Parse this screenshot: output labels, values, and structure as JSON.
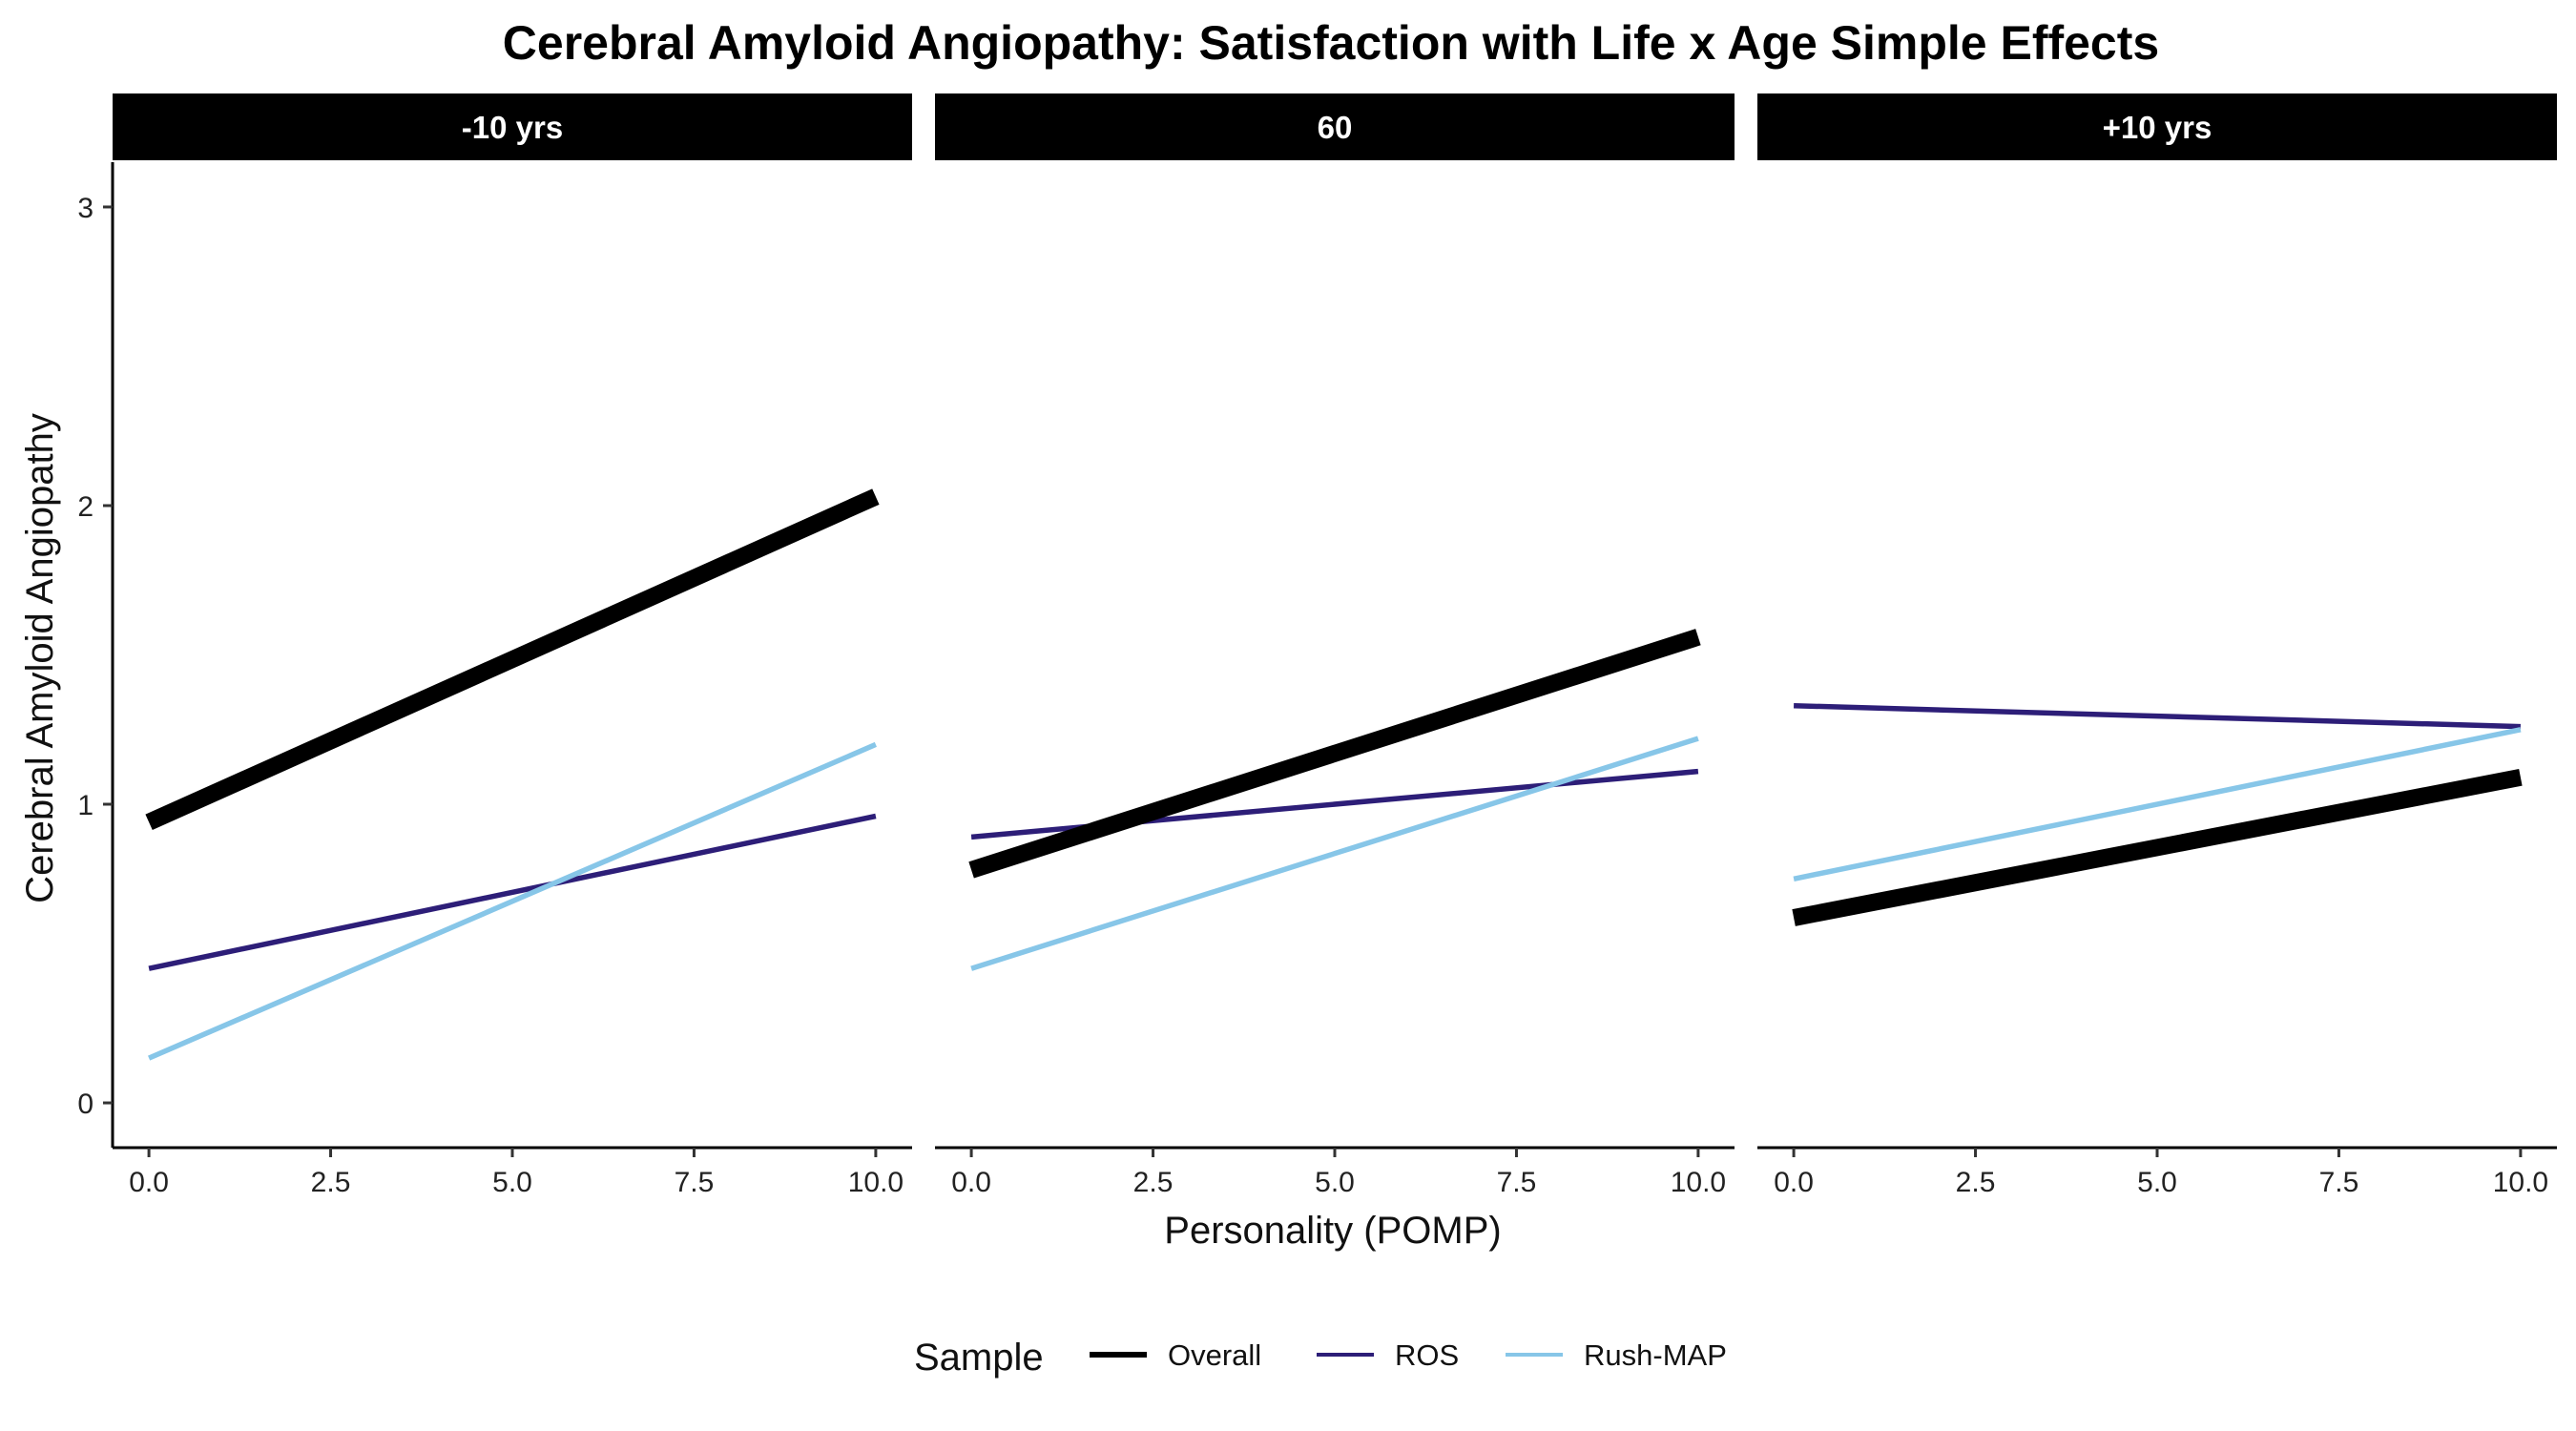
{
  "chart_data": {
    "type": "line",
    "title": "Cerebral Amyloid Angiopathy: Satisfaction with Life x Age Simple Effects",
    "xlabel": "Personality (POMP)",
    "ylabel": "Cerebral Amyloid Angiopathy",
    "xlim": [
      -0.5,
      10.5
    ],
    "ylim": [
      -0.15,
      3.15
    ],
    "x_ticks": [
      "0.0",
      "2.5",
      "5.0",
      "7.5",
      "10.0"
    ],
    "x_tick_values": [
      0,
      2.5,
      5,
      7.5,
      10
    ],
    "y_ticks": [
      "0",
      "1",
      "2",
      "3"
    ],
    "y_tick_values": [
      0,
      1,
      2,
      3
    ],
    "grid": false,
    "legend": {
      "title": "Sample",
      "placement": "bottom",
      "entries": [
        "Overall",
        "ROS",
        "Rush-MAP"
      ]
    },
    "series_styles": [
      {
        "name": "Overall",
        "color": "#000000",
        "weight": "thick"
      },
      {
        "name": "ROS",
        "color": "#2D1E78",
        "weight": "thin"
      },
      {
        "name": "Rush-MAP",
        "color": "#87C6E8",
        "weight": "thin"
      }
    ],
    "panels": [
      {
        "label": "-10 yrs",
        "series": [
          {
            "name": "Overall",
            "x": [
              0,
              10
            ],
            "y": [
              0.94,
              2.03
            ]
          },
          {
            "name": "ROS",
            "x": [
              0,
              10
            ],
            "y": [
              0.45,
              0.96
            ]
          },
          {
            "name": "Rush-MAP",
            "x": [
              0,
              10
            ],
            "y": [
              0.15,
              1.2
            ]
          }
        ]
      },
      {
        "label": "60",
        "series": [
          {
            "name": "Overall",
            "x": [
              0,
              10
            ],
            "y": [
              0.78,
              1.56
            ]
          },
          {
            "name": "ROS",
            "x": [
              0,
              10
            ],
            "y": [
              0.89,
              1.11
            ]
          },
          {
            "name": "Rush-MAP",
            "x": [
              0,
              10
            ],
            "y": [
              0.45,
              1.22
            ]
          }
        ]
      },
      {
        "label": "+10 yrs",
        "series": [
          {
            "name": "Overall",
            "x": [
              0,
              10
            ],
            "y": [
              0.62,
              1.09
            ]
          },
          {
            "name": "ROS",
            "x": [
              0,
              10
            ],
            "y": [
              1.33,
              1.26
            ]
          },
          {
            "name": "Rush-MAP",
            "x": [
              0,
              10
            ],
            "y": [
              0.75,
              1.25
            ]
          }
        ]
      }
    ]
  }
}
